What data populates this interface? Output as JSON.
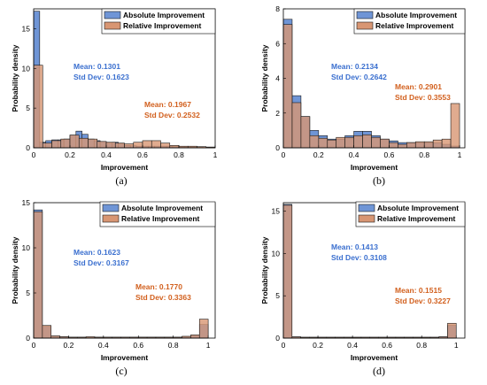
{
  "colors": {
    "absolute": "#6F95D6",
    "relative": "#D89673",
    "overlap": "#9A6A63",
    "abs_text": "#3A6FCF",
    "rel_text": "#D2601E"
  },
  "chart_data": [
    {
      "type": "bar",
      "caption": "(a)",
      "xlabel": "Improvement",
      "ylabel": "Probability density",
      "xlim": [
        0,
        1
      ],
      "ylim": [
        0,
        17.5
      ],
      "xticks": [
        0,
        0.2,
        0.4,
        0.6,
        0.8,
        1
      ],
      "xtick_labels": [
        "0",
        "0.2",
        "0.4",
        "0.6",
        "0.8",
        "1"
      ],
      "yticks": [
        0,
        5,
        10,
        15
      ],
      "ytick_labels": [
        "0",
        "5",
        "10",
        "15"
      ],
      "legend": [
        "Absolute Improvement",
        "Relative Improvement"
      ],
      "legend_position": "top-right",
      "grid": false,
      "abs_bin_width": 0.0333,
      "abs_values": [
        17.2,
        0.7,
        0.9,
        1.0,
        1.0,
        1.1,
        1.6,
        2.1,
        1.7,
        1.1,
        0.9,
        0.8,
        0.6,
        0.7,
        0.5,
        0.3,
        0.25,
        0.2,
        0.2,
        0.2,
        0.2,
        0.2,
        0.2,
        0.15,
        0.1,
        0.1,
        0.1,
        0.1,
        0.05,
        0.05
      ],
      "rel_bin_width": 0.05,
      "rel_values": [
        10.4,
        0.6,
        0.9,
        1.1,
        1.6,
        1.2,
        1.1,
        0.8,
        0.7,
        0.6,
        0.5,
        0.7,
        0.9,
        0.9,
        0.6,
        0.3,
        0.2,
        0.2,
        0.15,
        0.1
      ],
      "abs_stats": [
        "Mean: 0.1301",
        "Std Dev: 0.1623"
      ],
      "rel_stats": [
        "Mean: 0.1967",
        "Std Dev: 0.2532"
      ]
    },
    {
      "type": "bar",
      "caption": "(b)",
      "xlabel": "Improvement",
      "ylabel": "Probability density",
      "xlim": [
        0,
        1.03
      ],
      "ylim": [
        0,
        8
      ],
      "xticks": [
        0,
        0.2,
        0.4,
        0.6,
        0.8,
        1
      ],
      "xtick_labels": [
        "0",
        "0.2",
        "0.4",
        "0.6",
        "0.8",
        "1"
      ],
      "yticks": [
        0,
        2,
        4,
        6,
        8
      ],
      "ytick_labels": [
        "0",
        "2",
        "4",
        "6",
        "8"
      ],
      "legend": [
        "Absolute Improvement",
        "Relative Improvement"
      ],
      "legend_position": "top-right",
      "grid": false,
      "abs_bin_width": 0.05,
      "abs_values": [
        7.4,
        3.0,
        1.8,
        1.0,
        0.7,
        0.5,
        0.5,
        0.7,
        0.95,
        0.95,
        0.7,
        0.5,
        0.4,
        0.3,
        0.3,
        0.3,
        0.3,
        0.3,
        0.2,
        0.1
      ],
      "rel_bin_width": 0.05,
      "rel_values": [
        7.1,
        2.6,
        1.8,
        0.7,
        0.55,
        0.45,
        0.6,
        0.6,
        0.7,
        0.75,
        0.6,
        0.5,
        0.3,
        0.2,
        0.3,
        0.35,
        0.35,
        0.45,
        0.5,
        2.55
      ],
      "abs_stats": [
        "Mean: 0.2134",
        "Std Dev: 0.2642"
      ],
      "rel_stats": [
        "Mean: 0.2901",
        "Std Dev: 0.3553"
      ]
    },
    {
      "type": "bar",
      "caption": "(c)",
      "xlabel": "Improvement",
      "ylabel": "Probability density",
      "xlim": [
        0,
        1.04
      ],
      "ylim": [
        0,
        15
      ],
      "xticks": [
        0,
        0.2,
        0.4,
        0.6,
        0.8,
        1
      ],
      "xtick_labels": [
        "0",
        "0.2",
        "0.4",
        "0.6",
        "0.8",
        "1"
      ],
      "yticks": [
        0,
        5,
        10,
        15
      ],
      "ytick_labels": [
        "0",
        "5",
        "10",
        "15"
      ],
      "legend": [
        "Absolute Improvement",
        "Relative Improvement"
      ],
      "legend_position": "top-right",
      "grid": false,
      "abs_bin_width": 0.05,
      "abs_values": [
        14.2,
        1.3,
        0.2,
        0.15,
        0.1,
        0.1,
        0.1,
        0.1,
        0.1,
        0.1,
        0.1,
        0.1,
        0.1,
        0.1,
        0.1,
        0.1,
        0.1,
        0.15,
        0.3,
        1.5
      ],
      "rel_bin_width": 0.05,
      "rel_values": [
        14.0,
        1.4,
        0.25,
        0.15,
        0.1,
        0.1,
        0.15,
        0.1,
        0.1,
        0.1,
        0.1,
        0.1,
        0.1,
        0.1,
        0.1,
        0.1,
        0.1,
        0.2,
        0.35,
        2.1
      ],
      "abs_stats": [
        "Mean: 0.1623",
        "Std Dev: 0.3167"
      ],
      "rel_stats": [
        "Mean: 0.1770",
        "Std Dev: 0.3363"
      ]
    },
    {
      "type": "bar",
      "caption": "(d)",
      "xlabel": "Improvement",
      "ylabel": "Probability density",
      "xlim": [
        0,
        1.05
      ],
      "ylim": [
        0,
        16
      ],
      "xticks": [
        0,
        0.2,
        0.4,
        0.6,
        0.8,
        1
      ],
      "xtick_labels": [
        "0",
        "0.2",
        "0.4",
        "0.6",
        "0.8",
        "1"
      ],
      "yticks": [
        0,
        5,
        10,
        15
      ],
      "ytick_labels": [
        "0",
        "5",
        "10",
        "15"
      ],
      "legend": [
        "Absolute Improvement",
        "Relative Improvement"
      ],
      "legend_position": "top-right",
      "grid": false,
      "abs_bin_width": 0.05,
      "abs_values": [
        15.8,
        0.15,
        0.1,
        0.1,
        0.1,
        0.1,
        0.1,
        0.1,
        0.1,
        0.1,
        0.1,
        0.1,
        0.1,
        0.1,
        0.1,
        0.1,
        0.1,
        0.1,
        0.15,
        1.5
      ],
      "rel_bin_width": 0.05,
      "rel_values": [
        15.7,
        0.15,
        0.1,
        0.1,
        0.1,
        0.1,
        0.1,
        0.1,
        0.1,
        0.1,
        0.1,
        0.1,
        0.1,
        0.1,
        0.1,
        0.1,
        0.1,
        0.1,
        0.15,
        1.75
      ],
      "abs_stats": [
        "Mean: 0.1413",
        "Std Dev: 0.3108"
      ],
      "rel_stats": [
        "Mean: 0.1515",
        "Std Dev: 0.3227"
      ]
    }
  ]
}
